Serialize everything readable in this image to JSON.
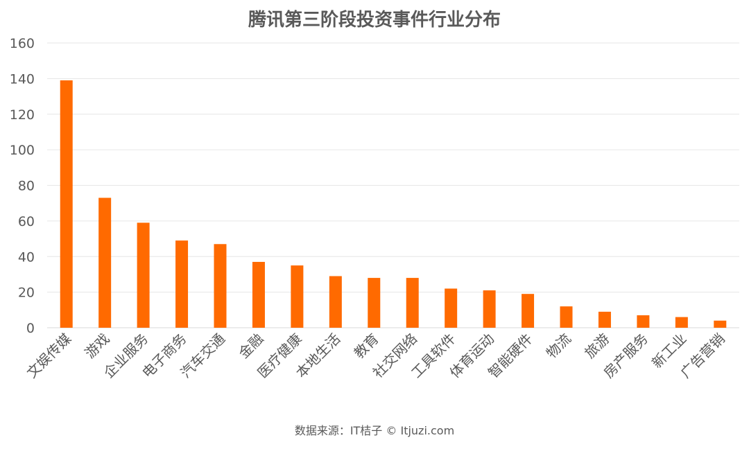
{
  "chart_data": {
    "type": "bar",
    "title": "腾讯第三阶段投资事件行业分布",
    "source": "数据来源：IT桔子 © Itjuzi.com",
    "categories": [
      "文娱传媒",
      "游戏",
      "企业服务",
      "电子商务",
      "汽车交通",
      "金融",
      "医疗健康",
      "本地生活",
      "教育",
      "社交网络",
      "工具软件",
      "体育运动",
      "智能硬件",
      "物流",
      "旅游",
      "房产服务",
      "新工业",
      "广告营销"
    ],
    "values": [
      139,
      73,
      59,
      49,
      47,
      37,
      35,
      29,
      28,
      28,
      22,
      21,
      19,
      12,
      9,
      7,
      6,
      4
    ],
    "ylim": [
      0,
      160
    ],
    "yticks": [
      0,
      20,
      40,
      60,
      80,
      100,
      120,
      140,
      160
    ],
    "xlabel": "",
    "ylabel": "",
    "grid": true,
    "legend": "none",
    "bar_color": "#FF6A00"
  }
}
